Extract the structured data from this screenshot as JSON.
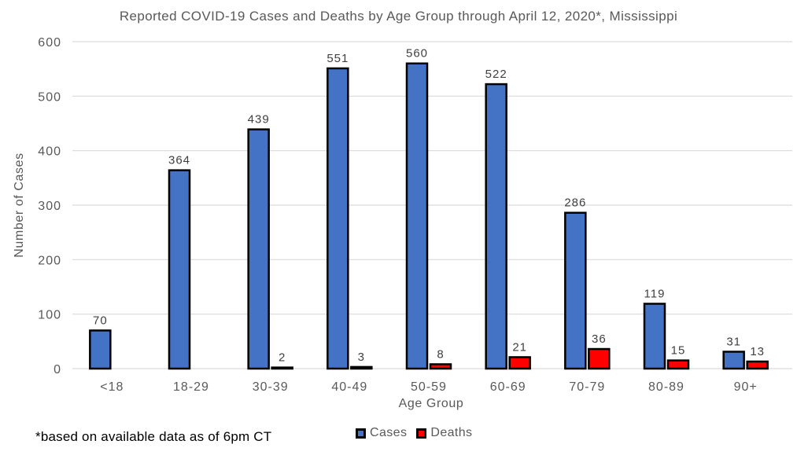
{
  "title": "Reported COVID-19 Cases and Deaths by Age Group through April 12, 2020*, Mississippi",
  "footnote": "*based on available data as of 6pm CT",
  "colors": {
    "cases": "#4472C4",
    "deaths": "#FF0000",
    "bar_border": "#000000",
    "grid": "#D9D9D9",
    "axis_text": "#595959",
    "data_label": "#404040",
    "background": "#FFFFFF",
    "footnote_text": "#000000"
  },
  "chart_data": {
    "type": "bar",
    "title": "Reported COVID-19 Cases and Deaths by Age Group through April 12, 2020*, Mississippi",
    "categories": [
      "<18",
      "18-29",
      "30-39",
      "40-49",
      "50-59",
      "60-69",
      "70-79",
      "80-89",
      "90+"
    ],
    "series": [
      {
        "name": "Cases",
        "color": "#4472C4",
        "values": [
          70,
          364,
          439,
          551,
          560,
          522,
          286,
          119,
          31
        ]
      },
      {
        "name": "Deaths",
        "color": "#FF0000",
        "values": [
          0,
          0,
          2,
          3,
          8,
          21,
          36,
          15,
          13
        ]
      }
    ],
    "xlabel": "Age Group",
    "ylabel": "Number of Cases",
    "ylim": [
      0,
      600
    ],
    "yticks": [
      0,
      100,
      200,
      300,
      400,
      500,
      600
    ],
    "grid": true,
    "gridlines_horizontal_only": true,
    "legend_position": "bottom",
    "data_labels_shown": true,
    "zero_value_bars_hidden": true
  }
}
